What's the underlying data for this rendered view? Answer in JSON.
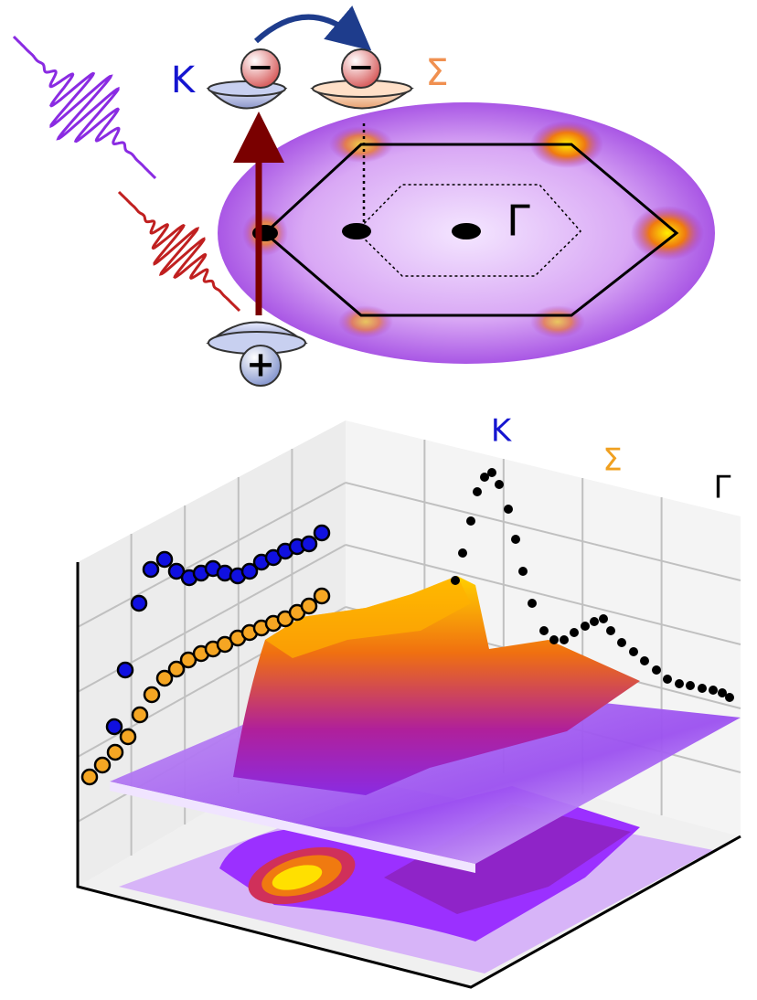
{
  "diagram_top": {
    "valley_labels": [
      "K",
      "Σ",
      "Γ"
    ],
    "charges": [
      "−",
      "−",
      "+"
    ]
  },
  "plot_3d": {
    "point_labels": [
      "K",
      "Σ",
      "Γ"
    ]
  }
}
